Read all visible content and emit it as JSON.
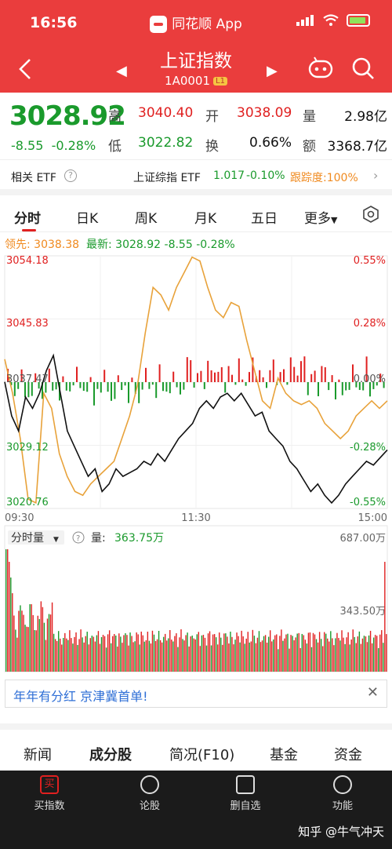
{
  "status": {
    "time": "16:56",
    "app_name": "同花顺 App"
  },
  "header": {
    "title": "上证指数",
    "code": "1A0001",
    "level": "L1"
  },
  "quote": {
    "price": "3028.92",
    "change": "-8.55",
    "change_pct": "-0.28%",
    "high_label": "高",
    "high": "3040.40",
    "open_label": "开",
    "open": "3038.09",
    "volume_label": "量",
    "volume": "2.98亿",
    "low_label": "低",
    "low": "3022.82",
    "turnover_label": "换",
    "turnover": "0.66%",
    "amount_label": "额",
    "amount": "3368.7亿"
  },
  "etf": {
    "label": "相关 ETF",
    "name": "上证综指 ETF",
    "price": "1.017",
    "change": "-0.10%",
    "tracking": "跟踪度:100%"
  },
  "tabs": [
    "分时",
    "日K",
    "周K",
    "月K",
    "五日",
    "更多"
  ],
  "legend": {
    "lead_label": "领先:",
    "lead_value": "3038.38",
    "latest_label": "最新:",
    "latest_value": "3028.92",
    "latest_change": "-8.55",
    "latest_pct": "-0.28%"
  },
  "chart_data": {
    "type": "line",
    "y_labels_left": [
      "3054.18",
      "3045.83",
      "3037.47",
      "3029.12",
      "3020.76"
    ],
    "y_labels_right": [
      "0.55%",
      "0.28%",
      "0.00%",
      "-0.28%",
      "-0.55%"
    ],
    "x_labels": [
      "09:30",
      "11:30",
      "15:00"
    ],
    "ylim": [
      3020.76,
      3054.18
    ],
    "price_series": [
      3037.5,
      3033,
      3031,
      3035.5,
      3034,
      3036,
      3039,
      3041,
      3036,
      3031,
      3029,
      3027,
      3025,
      3026,
      3023,
      3024,
      3026,
      3025,
      3025.5,
      3026,
      3027,
      3026.5,
      3028,
      3027,
      3028.5,
      3030,
      3031,
      3032,
      3034,
      3035,
      3034,
      3035.5,
      3036,
      3035,
      3036,
      3034.5,
      3033,
      3033.5,
      3031,
      3030,
      3029,
      3027,
      3026,
      3024.5,
      3023,
      3024,
      3022.5,
      3021.5,
      3022.5,
      3024,
      3025,
      3026,
      3027,
      3026.5,
      3027.5,
      3028.5
    ],
    "lead_series": [
      3040.5,
      3036,
      3030,
      3022,
      3021.5,
      3036,
      3034,
      3028,
      3025,
      3023,
      3022.5,
      3024,
      3025,
      3026,
      3027,
      3030,
      3033,
      3037,
      3044,
      3050,
      3049,
      3047,
      3050,
      3052,
      3054,
      3053.5,
      3050,
      3047,
      3046,
      3048,
      3047.5,
      3043,
      3039,
      3035,
      3034,
      3038,
      3036,
      3035,
      3034.5,
      3035,
      3034,
      3032,
      3031,
      3030,
      3031,
      3033,
      3034,
      3035,
      3034,
      3035
    ],
    "volume_ylim": [
      0,
      687
    ],
    "volume_labels": [
      "687.00万",
      "343.50万"
    ],
    "volume_title": "分时量",
    "volume_value_label": "量:",
    "volume_value": "363.75万"
  },
  "banner": {
    "text": "年年有分红 京津冀首单!"
  },
  "bottom_tabs": [
    "新闻",
    "成分股",
    "简况(F10)",
    "基金",
    "资金"
  ],
  "toolbar": [
    "买指数",
    "论股",
    "删自选",
    "功能"
  ],
  "watermark": "知乎 @牛气冲天"
}
